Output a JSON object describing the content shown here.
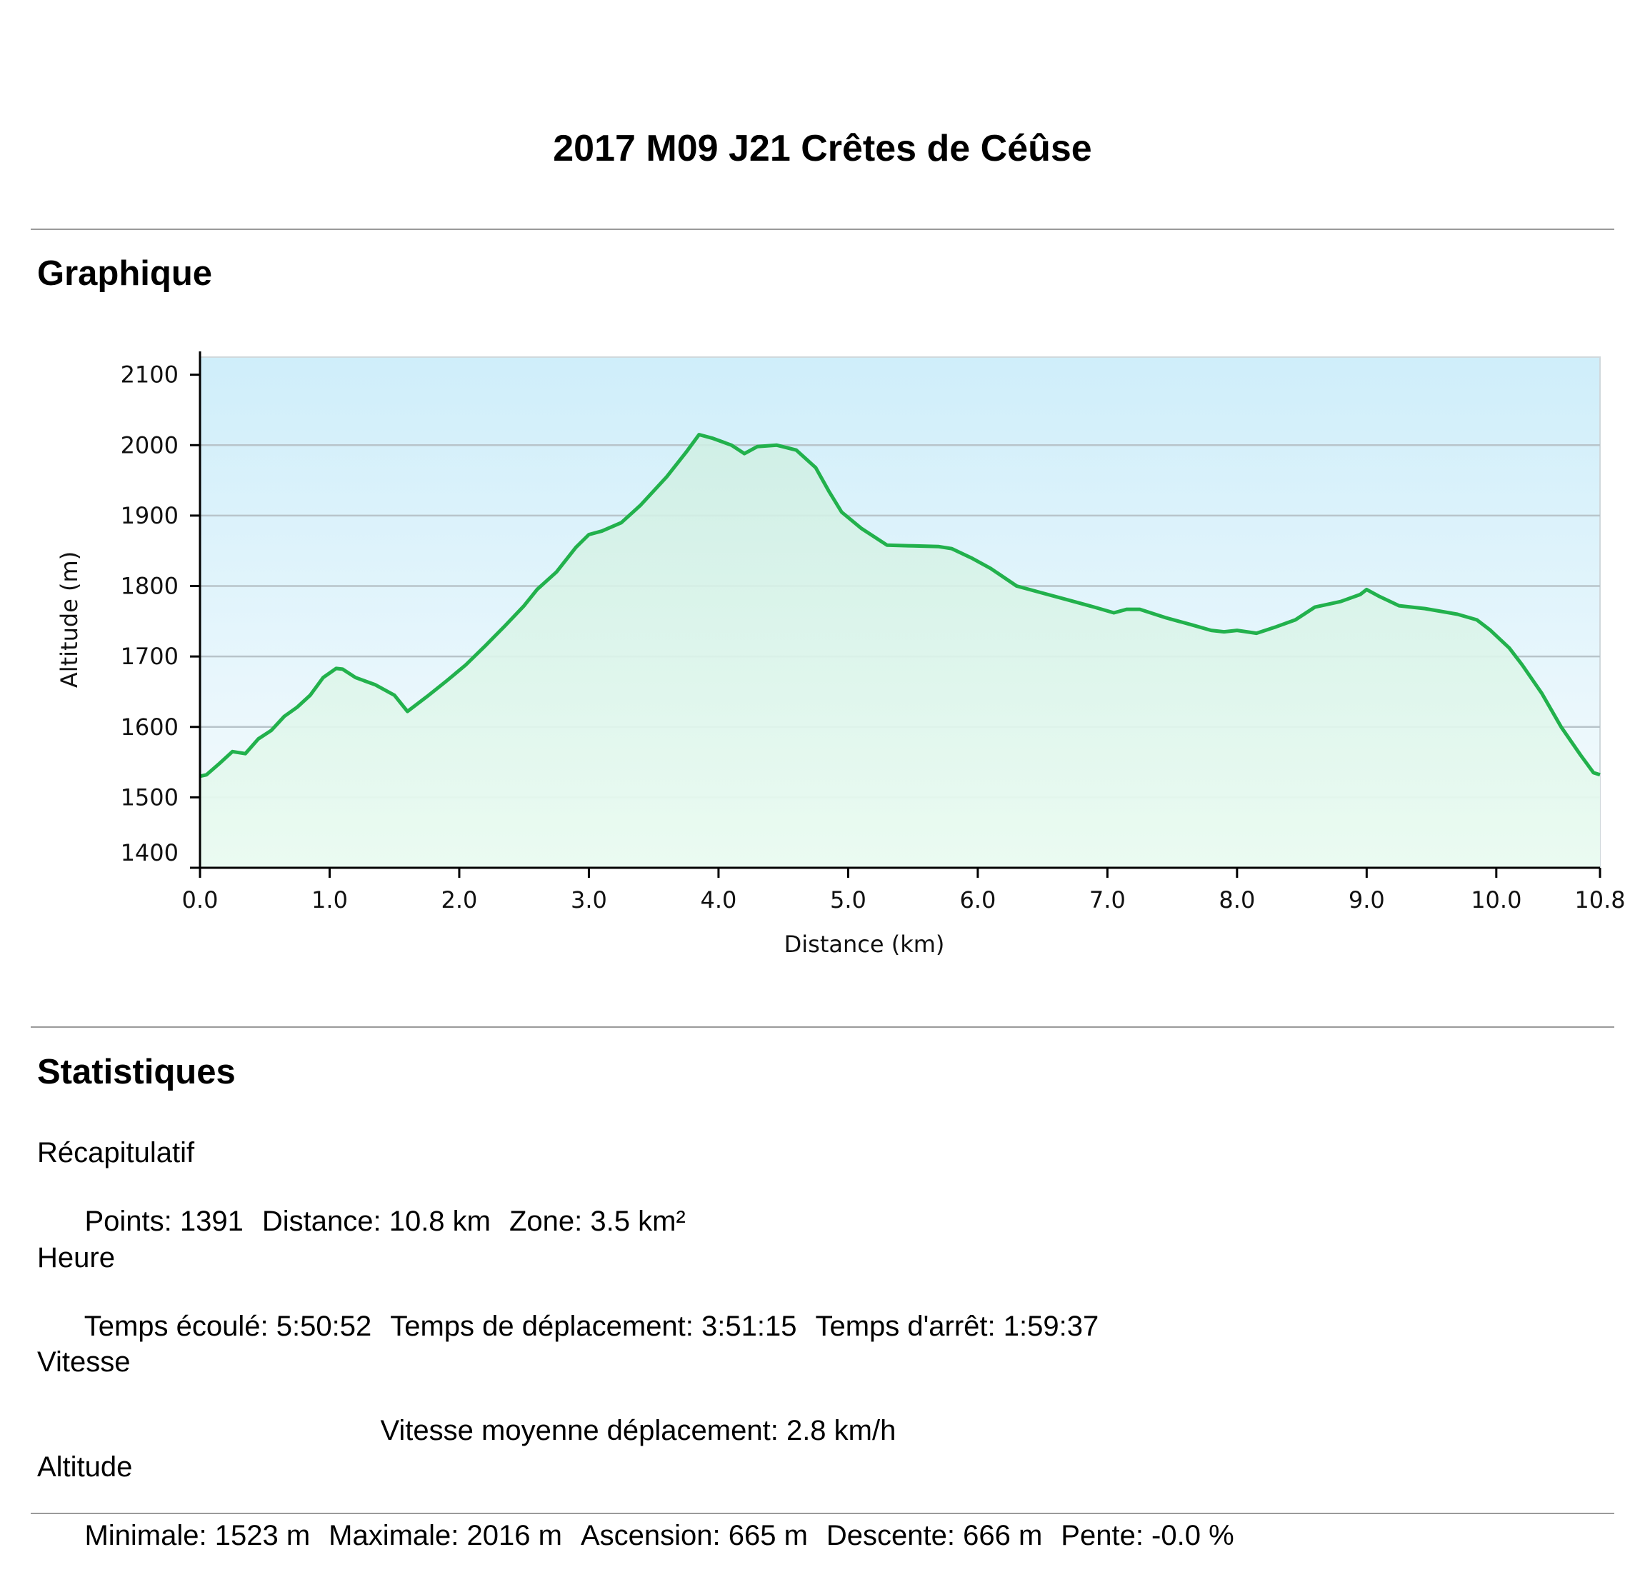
{
  "header": {
    "title": "2017 M09 J21 Crêtes de Céûse"
  },
  "sections": {
    "graph_title": "Graphique",
    "stats_title": "Statistiques"
  },
  "colors": {
    "line": "#22b14c",
    "grid": "#b8c4ca",
    "fill_top": "#d0eefa",
    "fill_bottom": "#ecfbf1"
  },
  "chart_data": {
    "type": "area",
    "title": "",
    "xlabel": "Distance   (km)",
    "ylabel": "Altitude (m)",
    "xlim": [
      0,
      10.8
    ],
    "ylim": [
      1400,
      2100
    ],
    "x_ticks": [
      "0.0",
      "1.0",
      "2.0",
      "3.0",
      "4.0",
      "5.0",
      "6.0",
      "7.0",
      "8.0",
      "9.0",
      "10.0",
      "10.8"
    ],
    "y_ticks": [
      "2100",
      "2000",
      "1900",
      "1800",
      "1700",
      "1600",
      "1500",
      "1400"
    ],
    "grid": true,
    "series": [
      {
        "x": [
          0,
          0.05,
          0.15,
          0.25,
          0.35,
          0.45,
          0.55,
          0.65,
          0.75,
          0.85,
          0.95,
          1.05,
          1.1,
          1.2,
          1.35,
          1.5,
          1.6,
          1.75,
          1.9,
          2.05,
          2.2,
          2.35,
          2.5,
          2.6,
          2.75,
          2.9,
          3.0,
          3.1,
          3.25,
          3.4,
          3.6,
          3.75,
          3.85,
          3.95,
          4.1,
          4.2,
          4.3,
          4.45,
          4.6,
          4.75,
          4.85,
          4.95,
          5.1,
          5.3,
          5.5,
          5.7,
          5.8,
          5.95,
          6.1,
          6.3,
          6.5,
          6.7,
          6.9,
          7.05,
          7.15,
          7.25,
          7.45,
          7.65,
          7.8,
          7.9,
          8.0,
          8.15,
          8.3,
          8.45,
          8.6,
          8.8,
          8.95,
          9.0,
          9.1,
          9.25,
          9.45,
          9.7,
          9.85,
          9.95,
          10.1,
          10.2,
          10.35,
          10.5,
          10.65,
          10.75,
          10.8
        ],
        "y": [
          1530,
          1532,
          1548,
          1565,
          1562,
          1583,
          1595,
          1615,
          1628,
          1645,
          1670,
          1683,
          1682,
          1670,
          1660,
          1645,
          1622,
          1643,
          1665,
          1688,
          1715,
          1743,
          1772,
          1795,
          1820,
          1855,
          1873,
          1878,
          1890,
          1915,
          1955,
          1990,
          2015,
          2010,
          2000,
          1988,
          1998,
          2000,
          1993,
          1968,
          1935,
          1905,
          1882,
          1858,
          1857,
          1856,
          1853,
          1840,
          1825,
          1800,
          1790,
          1780,
          1770,
          1762,
          1767,
          1767,
          1755,
          1745,
          1737,
          1735,
          1737,
          1733,
          1742,
          1752,
          1770,
          1778,
          1788,
          1795,
          1785,
          1772,
          1768,
          1760,
          1752,
          1738,
          1712,
          1688,
          1648,
          1600,
          1560,
          1535,
          1532
        ]
      }
    ]
  },
  "stats": {
    "summary": {
      "label": "Récapitulatif",
      "items": [
        "Points: 1391",
        "Distance: 10.8 km",
        "Zone: 3.5 km²"
      ]
    },
    "time": {
      "label": "Heure",
      "items": [
        "Temps écoulé: 5:50:52",
        "Temps de déplacement: 3:51:15",
        "Temps d'arrêt: 1:59:37"
      ]
    },
    "speed": {
      "label": "Vitesse",
      "items": [
        "Vitesse moyenne déplacement: 2.8 km/h"
      ]
    },
    "altitude": {
      "label": "Altitude",
      "items": [
        "Minimale: 1523 m",
        "Maximale: 2016 m",
        "Ascension: 665 m",
        "Descente: 666 m",
        "Pente: -0.0 %"
      ]
    }
  }
}
